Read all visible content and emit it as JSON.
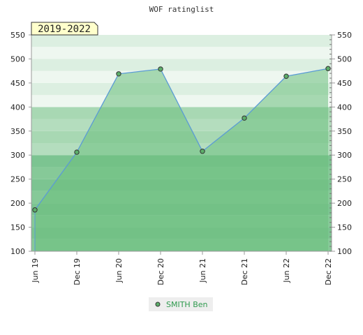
{
  "chart_data": {
    "type": "area",
    "title": "WOF ratinglist",
    "period_label": "2019-2022",
    "x": [
      "Jun 19",
      "Dec 19",
      "Jun 20",
      "Dec 20",
      "Jun 21",
      "Dec 21",
      "Jun 22",
      "Dec 22"
    ],
    "series": [
      {
        "name": "SMITH Ben",
        "values": [
          186,
          306,
          469,
          479,
          308,
          377,
          464,
          480
        ]
      }
    ],
    "ylim": [
      100,
      550
    ],
    "yticks": [
      100,
      150,
      200,
      250,
      300,
      350,
      400,
      450,
      500,
      550
    ],
    "y_axis_sides": [
      "left",
      "right"
    ],
    "grid": "horizontal bands",
    "legend_position": "bottom-center",
    "colors": {
      "line": "#5b9bd5",
      "fill": "#6cbf7e",
      "marker": "#5cae6a",
      "band_light": "#f2f8f3",
      "band_mid": "#c6e5cd",
      "band_dark": "#8ecc9c",
      "legend_text": "#2f9a4e",
      "period_bg": "#ffffcc"
    }
  }
}
